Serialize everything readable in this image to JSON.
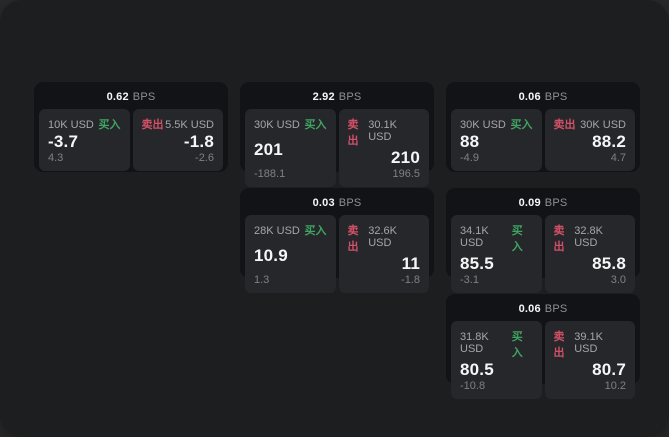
{
  "labels": {
    "bps_unit": "BPS",
    "buy": "买入",
    "sell": "卖出"
  },
  "colors": {
    "buy_tag": "#3fa463",
    "sell_tag": "#d25068",
    "window_bg": "#1d1e20",
    "card_bg": "#121316",
    "panel_bg": "#26272a",
    "value_text": "#f5f6f7",
    "muted_text": "#7e8184"
  },
  "cards": [
    {
      "bps": "0.62",
      "buy": {
        "amount": "10K USD",
        "value": "-3.7",
        "sub": "4.3"
      },
      "sell": {
        "amount": "5.5K USD",
        "value": "-1.8",
        "sub": "-2.6"
      }
    },
    {
      "bps": "2.92",
      "buy": {
        "amount": "30K USD",
        "value": "201",
        "sub": "-188.1"
      },
      "sell": {
        "amount": "30.1K USD",
        "value": "210",
        "sub": "196.5"
      }
    },
    {
      "bps": "0.06",
      "buy": {
        "amount": "30K USD",
        "value": "88",
        "sub": "-4.9"
      },
      "sell": {
        "amount": "30K USD",
        "value": "88.2",
        "sub": "4.7"
      }
    },
    {
      "bps": "0.03",
      "buy": {
        "amount": "28K USD",
        "value": "10.9",
        "sub": "1.3"
      },
      "sell": {
        "amount": "32.6K USD",
        "value": "11",
        "sub": "-1.8"
      }
    },
    {
      "bps": "0.09",
      "buy": {
        "amount": "34.1K USD",
        "value": "85.5",
        "sub": "-3.1"
      },
      "sell": {
        "amount": "32.8K USD",
        "value": "85.8",
        "sub": "3.0"
      }
    },
    {
      "bps": "0.06",
      "buy": {
        "amount": "31.8K USD",
        "value": "80.5",
        "sub": "-10.8"
      },
      "sell": {
        "amount": "39.1K USD",
        "value": "80.7",
        "sub": "10.2"
      }
    }
  ]
}
